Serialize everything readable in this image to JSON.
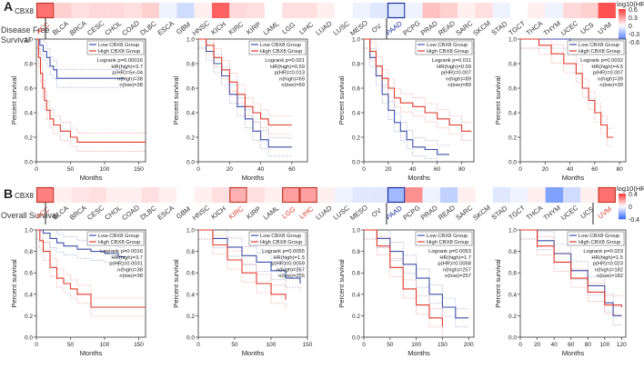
{
  "figure": {
    "panels": [
      {
        "letter": "A",
        "gene": "CBX8",
        "side_label_line1": "Disease Free",
        "side_label_line2": "Survival",
        "cancers": [
          "ACC",
          "BLCA",
          "BRCA",
          "CESC",
          "CHOL",
          "COAD",
          "DLBC",
          "ESCA",
          "GBM",
          "HNSC",
          "KICH",
          "KIRC",
          "KIRP",
          "LAML",
          "LGG",
          "LIHC",
          "LUAD",
          "LUSC",
          "MESO",
          "OV",
          "PAAD",
          "PCPG",
          "PRAD",
          "READ",
          "SARC",
          "SKCM",
          "STAD",
          "TGCT",
          "THCA",
          "THYM",
          "UCEC",
          "UCS",
          "UVM"
        ],
        "heat_values": [
          0.45,
          0.15,
          0.1,
          0.12,
          0.12,
          0.1,
          0.15,
          -0.05,
          -0.15,
          0.05,
          0.5,
          0.12,
          0.1,
          0.0,
          0.1,
          0.1,
          0.05,
          0.0,
          -0.05,
          -0.1,
          -0.1,
          -0.05,
          0.2,
          0.15,
          0.05,
          0.1,
          -0.05,
          0.0,
          0.05,
          -0.05,
          0.12,
          0.15,
          0.55
        ],
        "boxed_cancers": [
          "ACC",
          "PAAD"
        ],
        "red_labels": [
          "ACC"
        ],
        "blue_labels": [
          "PAAD"
        ],
        "legend_title": "log10(HR)",
        "legend_ticks": [
          "0.6",
          "0.3",
          "0",
          "-0.3",
          "-0.6"
        ]
      },
      {
        "letter": "B",
        "gene": "CBX8",
        "side_label_line1": "Overall Survival",
        "side_label_line2": "",
        "cancers": [
          "ACC",
          "BLCA",
          "BRCA",
          "CESC",
          "CHOL",
          "COAD",
          "DLBC",
          "ESCA",
          "GBM",
          "HNSC",
          "KICH",
          "KIRC",
          "KIRP",
          "LAML",
          "LGG",
          "LIHC",
          "LUAD",
          "LUSC",
          "MESO",
          "OV",
          "PAAD",
          "PCPG",
          "PRAD",
          "READ",
          "SARC",
          "SKCM",
          "STAD",
          "TGCT",
          "THCA",
          "THYM",
          "UCEC",
          "UCS",
          "UVM"
        ],
        "heat_values": [
          0.4,
          0.05,
          0.08,
          0.1,
          0.05,
          0.05,
          0.1,
          0.05,
          0.0,
          0.05,
          0.1,
          0.25,
          0.1,
          0.05,
          0.3,
          0.3,
          0.05,
          -0.05,
          -0.1,
          -0.1,
          -0.3,
          0.35,
          -0.05,
          -0.2,
          0.05,
          0.0,
          -0.1,
          -0.05,
          0.05,
          -0.4,
          -0.15,
          0.05,
          0.45
        ],
        "boxed_cancers": [
          "ACC",
          "KIRC",
          "LGG",
          "LIHC",
          "PAAD",
          "UVM"
        ],
        "red_labels": [
          "ACC",
          "KIRC",
          "LGG",
          "LIHC",
          "UVM"
        ],
        "blue_labels": [
          "PAAD"
        ],
        "legend_title": "log10(HR)",
        "legend_ticks": [
          "0.4",
          "0",
          "-0.4"
        ]
      }
    ]
  },
  "chart_data": [
    {
      "type": "line",
      "panel": "A",
      "title": "ACC",
      "xlabel": "Months",
      "ylabel": "Percent survival",
      "xlim": [
        0,
        160
      ],
      "ylim": [
        0,
        1.0
      ],
      "xticks": [
        0,
        50,
        100,
        150
      ],
      "yticks": [
        0.0,
        0.2,
        0.4,
        0.6,
        0.8,
        1.0
      ],
      "legend": [
        "Low CBX8 Group",
        "High CBX8 Group"
      ],
      "stats": [
        "Logrank p=0.00016",
        "HR(high)=3.7",
        "p(HR)=5e-04",
        "n(high)=38",
        "n(low)=38"
      ],
      "series": [
        {
          "name": "Low CBX8 Group",
          "color": "#3b4fa8",
          "x": [
            0,
            5,
            10,
            15,
            20,
            25,
            30,
            60,
            100,
            130
          ],
          "y": [
            1.0,
            0.95,
            0.9,
            0.85,
            0.78,
            0.75,
            0.68,
            0.68,
            0.68,
            0.68
          ]
        },
        {
          "name": "High CBX8 Group",
          "color": "#e0392b",
          "x": [
            0,
            3,
            6,
            9,
            12,
            15,
            20,
            25,
            35,
            50,
            60,
            160
          ],
          "y": [
            1.0,
            0.85,
            0.72,
            0.6,
            0.5,
            0.42,
            0.35,
            0.3,
            0.25,
            0.2,
            0.16,
            0.16
          ]
        }
      ]
    },
    {
      "type": "line",
      "panel": "A",
      "title": "KICH",
      "xlabel": "Months",
      "ylabel": "Percent survival",
      "xlim": [
        0,
        70
      ],
      "ylim": [
        0,
        1.0
      ],
      "xticks": [
        0,
        20,
        40,
        60
      ],
      "yticks": [
        0.0,
        0.2,
        0.4,
        0.6,
        0.8,
        1.0
      ],
      "legend": [
        "Low CBX8 Group",
        "High CBX8 Group"
      ],
      "stats": [
        "Logrank p=0.021",
        "HR(high)=0.59",
        "p(HR)=0.013",
        "n(high)=69",
        "n(low)=69"
      ],
      "series": [
        {
          "name": "Low CBX8 Group",
          "color": "#3b4fa8",
          "x": [
            0,
            5,
            10,
            15,
            20,
            25,
            30,
            35,
            40,
            45,
            50,
            60
          ],
          "y": [
            1.0,
            0.9,
            0.8,
            0.7,
            0.55,
            0.45,
            0.35,
            0.25,
            0.18,
            0.12,
            0.12,
            0.12
          ]
        },
        {
          "name": "High CBX8 Group",
          "color": "#e0392b",
          "x": [
            0,
            5,
            10,
            15,
            20,
            25,
            30,
            35,
            40,
            45,
            50,
            60
          ],
          "y": [
            1.0,
            0.95,
            0.85,
            0.75,
            0.65,
            0.55,
            0.45,
            0.4,
            0.35,
            0.3,
            0.3,
            0.3
          ]
        }
      ]
    },
    {
      "type": "line",
      "panel": "A",
      "title": "PAAD",
      "xlabel": "Months",
      "ylabel": "Percent survival",
      "xlim": [
        0,
        90
      ],
      "ylim": [
        0,
        1.0
      ],
      "xticks": [
        0,
        20,
        40,
        60,
        80
      ],
      "yticks": [
        0.0,
        0.2,
        0.4,
        0.6,
        0.8,
        1.0
      ],
      "legend": [
        "Low CBX8 Group",
        "High CBX8 Group"
      ],
      "stats": [
        "Logrank p=0.011",
        "HR(high)=0.59",
        "p(HR)=0.007",
        "n(high)=89",
        "n(low)=89"
      ],
      "series": [
        {
          "name": "Low CBX8 Group",
          "color": "#3b4fa8",
          "x": [
            0,
            5,
            10,
            15,
            20,
            25,
            30,
            35,
            40,
            50,
            60,
            70
          ],
          "y": [
            1.0,
            0.85,
            0.7,
            0.55,
            0.42,
            0.32,
            0.25,
            0.18,
            0.12,
            0.1,
            0.06,
            0.06
          ]
        },
        {
          "name": "High CBX8 Group",
          "color": "#e0392b",
          "x": [
            0,
            5,
            10,
            15,
            20,
            25,
            30,
            40,
            50,
            60,
            70,
            80,
            88
          ],
          "y": [
            1.0,
            0.9,
            0.78,
            0.68,
            0.6,
            0.52,
            0.48,
            0.45,
            0.4,
            0.35,
            0.3,
            0.25,
            0.25
          ]
        }
      ]
    },
    {
      "type": "line",
      "panel": "A",
      "title": "UVM",
      "xlabel": "Months",
      "ylabel": "Percent survival",
      "xlim": [
        0,
        85
      ],
      "ylim": [
        0,
        1.0
      ],
      "xticks": [
        0,
        20,
        40,
        60,
        80
      ],
      "yticks": [
        0.0,
        0.2,
        0.4,
        0.6,
        0.8,
        1.0
      ],
      "legend": [
        "Low CBX8 Group",
        "High CBX8 Group"
      ],
      "stats": [
        "Logrank p=0.0032",
        "HR(high)=4.5",
        "p(HR)=0.007",
        "n(high)=39",
        "n(low)=39"
      ],
      "series": [
        {
          "name": "Low CBX8 Group",
          "color": "#3b4fa8",
          "x": [
            0,
            20,
            40,
            60,
            75,
            80
          ],
          "y": [
            1.0,
            1.0,
            0.97,
            0.95,
            0.95,
            0.95
          ]
        },
        {
          "name": "High CBX8 Group",
          "color": "#e0392b",
          "x": [
            0,
            15,
            25,
            35,
            45,
            50,
            55,
            60,
            65,
            70,
            75
          ],
          "y": [
            1.0,
            0.95,
            0.88,
            0.8,
            0.72,
            0.6,
            0.5,
            0.4,
            0.3,
            0.2,
            0.2
          ]
        }
      ]
    },
    {
      "type": "line",
      "panel": "B",
      "title": "ACC",
      "xlabel": "Months",
      "ylabel": "Percent survival",
      "xlim": [
        0,
        160
      ],
      "ylim": [
        0,
        1.0
      ],
      "xticks": [
        0,
        50,
        100,
        150
      ],
      "yticks": [
        0.0,
        0.2,
        0.4,
        0.6,
        0.8,
        1.0
      ],
      "legend": [
        "Low CBX8 Group",
        "High CBX8 Group"
      ],
      "stats": [
        "Logrank p=0.0016",
        "HR(high)=3.7",
        "p(HR)=0.0031",
        "n(high)=38",
        "n(low)=38"
      ],
      "series": [
        {
          "name": "Low CBX8 Group",
          "color": "#3b4fa8",
          "x": [
            0,
            10,
            20,
            30,
            40,
            60,
            80,
            100,
            120,
            130
          ],
          "y": [
            1.0,
            0.97,
            0.92,
            0.88,
            0.85,
            0.82,
            0.8,
            0.78,
            0.75,
            0.75
          ]
        },
        {
          "name": "High CBX8 Group",
          "color": "#e0392b",
          "x": [
            0,
            5,
            10,
            20,
            30,
            40,
            50,
            60,
            80,
            100,
            160
          ],
          "y": [
            1.0,
            0.9,
            0.8,
            0.65,
            0.55,
            0.5,
            0.45,
            0.4,
            0.28,
            0.28,
            0.28
          ]
        }
      ]
    },
    {
      "type": "line",
      "panel": "B",
      "title": "KIRC",
      "xlabel": "Months",
      "ylabel": "Percent survival",
      "xlim": [
        0,
        150
      ],
      "ylim": [
        0,
        1.0
      ],
      "xticks": [
        0,
        50,
        100,
        150
      ],
      "yticks": [
        0.0,
        0.2,
        0.4,
        0.6,
        0.8,
        1.0
      ],
      "legend": [
        "Low CBX8 Group",
        "High CBX8 Group"
      ],
      "stats": [
        "Logrank p=0.0055",
        "HR(high)=1.5",
        "p(HR)=0.0059",
        "n(high)=257",
        "n(low)=255"
      ],
      "series": [
        {
          "name": "Low CBX8 Group",
          "color": "#3b4fa8",
          "x": [
            0,
            20,
            40,
            60,
            80,
            100,
            120,
            140
          ],
          "y": [
            1.0,
            0.92,
            0.84,
            0.76,
            0.7,
            0.62,
            0.55,
            0.5
          ]
        },
        {
          "name": "High CBX8 Group",
          "color": "#e0392b",
          "x": [
            0,
            20,
            40,
            60,
            80,
            100,
            120
          ],
          "y": [
            1.0,
            0.86,
            0.72,
            0.6,
            0.5,
            0.4,
            0.35
          ]
        }
      ]
    },
    {
      "type": "line",
      "panel": "B",
      "title": "LGG / LIHC",
      "xlabel": "Months",
      "ylabel": "Percent survival",
      "xlim": [
        0,
        210
      ],
      "ylim": [
        0,
        1.0
      ],
      "xticks": [
        0,
        50,
        100,
        150,
        200
      ],
      "yticks": [
        0.0,
        0.2,
        0.4,
        0.6,
        0.8,
        1.0
      ],
      "legend": [
        "Low CBX8 Group",
        "High CBX8 Group"
      ],
      "stats": [
        "Logrank p=0.0053",
        "HR(high)=1.7",
        "p(HR)=0.0058",
        "n(high)=257",
        "n(low)=257"
      ],
      "series": [
        {
          "name": "Low CBX8 Group",
          "color": "#3b4fa8",
          "x": [
            0,
            25,
            50,
            75,
            100,
            125,
            150,
            175,
            200
          ],
          "y": [
            1.0,
            0.92,
            0.8,
            0.68,
            0.55,
            0.4,
            0.28,
            0.18,
            0.18
          ]
        },
        {
          "name": "High CBX8 Group",
          "color": "#e0392b",
          "x": [
            0,
            25,
            50,
            75,
            100,
            125,
            150
          ],
          "y": [
            1.0,
            0.85,
            0.65,
            0.45,
            0.3,
            0.18,
            0.1
          ]
        }
      ]
    },
    {
      "type": "line",
      "panel": "B",
      "title": "UVM",
      "xlabel": "Months",
      "ylabel": "Percent survival",
      "xlim": [
        0,
        125
      ],
      "ylim": [
        0,
        1.0
      ],
      "xticks": [
        0,
        20,
        40,
        60,
        80,
        100,
        120
      ],
      "yticks": [
        0.0,
        0.2,
        0.4,
        0.6,
        0.8,
        1.0
      ],
      "legend": [
        "Low CBX8 Group",
        "High CBX8 Group"
      ],
      "stats": [
        "Logrank p=0.023",
        "HR(high)=1.5",
        "p(HR)=0.023",
        "n(high)=182",
        "n(low)=182"
      ],
      "series": [
        {
          "name": "Low CBX8 Group",
          "color": "#3b4fa8",
          "x": [
            0,
            20,
            40,
            60,
            80,
            100,
            110,
            120
          ],
          "y": [
            1.0,
            0.9,
            0.78,
            0.62,
            0.48,
            0.32,
            0.2,
            0.2
          ]
        },
        {
          "name": "High CBX8 Group",
          "color": "#e0392b",
          "x": [
            0,
            20,
            40,
            60,
            80,
            100,
            120
          ],
          "y": [
            1.0,
            0.85,
            0.7,
            0.55,
            0.42,
            0.3,
            0.28
          ]
        }
      ]
    }
  ]
}
